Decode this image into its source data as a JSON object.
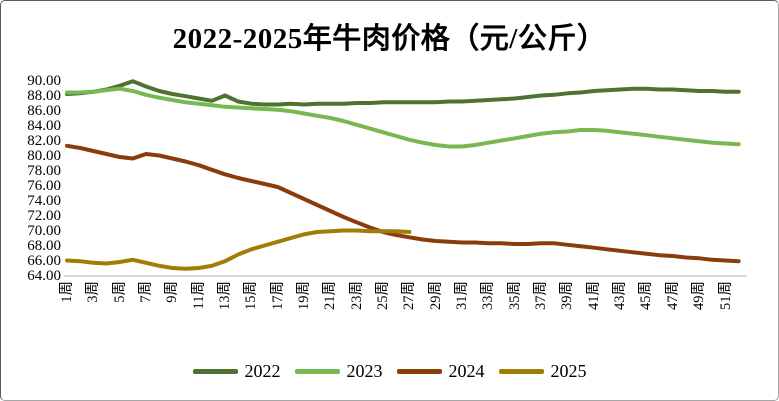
{
  "title": "2022-2025年牛肉价格（元/公斤）",
  "chart_data": {
    "type": "line",
    "title": "2022-2025年牛肉价格（元/公斤）",
    "xlabel": "",
    "ylabel": "",
    "x_unit": "周",
    "xlim": [
      1,
      52
    ],
    "ylim": [
      64,
      90
    ],
    "y_step": 2,
    "grid": false,
    "legend_position": "bottom",
    "axis_line_color": "#d9d9d9",
    "y_tick_labels": [
      "90.00",
      "88.00",
      "86.00",
      "84.00",
      "82.00",
      "80.00",
      "78.00",
      "76.00",
      "74.00",
      "72.00",
      "70.00",
      "68.00",
      "66.00",
      "64.00"
    ],
    "x_tick_labels": [
      "1周",
      "3周",
      "5周",
      "7周",
      "9周",
      "11周",
      "13周",
      "15周",
      "17周",
      "19周",
      "21周",
      "23周",
      "25周",
      "27周",
      "29周",
      "31周",
      "33周",
      "35周",
      "37周",
      "39周",
      "41周",
      "43周",
      "45周",
      "47周",
      "49周",
      "51周"
    ],
    "series": [
      {
        "name": "2022",
        "color": "#4e7231",
        "values": [
          88.2,
          88.3,
          88.5,
          88.8,
          89.3,
          89.9,
          89.2,
          88.6,
          88.2,
          87.9,
          87.6,
          87.3,
          88.0,
          87.2,
          86.9,
          86.8,
          86.8,
          86.9,
          86.8,
          86.9,
          86.9,
          86.9,
          87.0,
          87.0,
          87.1,
          87.1,
          87.1,
          87.1,
          87.1,
          87.2,
          87.2,
          87.3,
          87.4,
          87.5,
          87.6,
          87.8,
          88.0,
          88.1,
          88.3,
          88.4,
          88.6,
          88.7,
          88.8,
          88.9,
          88.9,
          88.8,
          88.8,
          88.7,
          88.6,
          88.6,
          88.5,
          88.5
        ]
      },
      {
        "name": "2023",
        "color": "#77b851",
        "values": [
          88.4,
          88.4,
          88.5,
          88.7,
          88.9,
          88.6,
          88.1,
          87.7,
          87.4,
          87.1,
          86.9,
          86.7,
          86.5,
          86.4,
          86.3,
          86.2,
          86.1,
          85.9,
          85.6,
          85.3,
          85.0,
          84.6,
          84.1,
          83.6,
          83.1,
          82.6,
          82.1,
          81.7,
          81.4,
          81.2,
          81.2,
          81.4,
          81.7,
          82.0,
          82.3,
          82.6,
          82.9,
          83.1,
          83.2,
          83.4,
          83.4,
          83.3,
          83.1,
          82.9,
          82.7,
          82.5,
          82.3,
          82.1,
          81.9,
          81.7,
          81.6,
          81.5
        ]
      },
      {
        "name": "2024",
        "color": "#8b3c0c",
        "values": [
          81.3,
          81.0,
          80.6,
          80.2,
          79.8,
          79.6,
          80.2,
          80.0,
          79.6,
          79.2,
          78.7,
          78.1,
          77.5,
          77.0,
          76.6,
          76.2,
          75.8,
          75.0,
          74.2,
          73.4,
          72.6,
          71.8,
          71.1,
          70.4,
          69.8,
          69.4,
          69.1,
          68.8,
          68.6,
          68.5,
          68.4,
          68.4,
          68.3,
          68.3,
          68.2,
          68.2,
          68.3,
          68.3,
          68.1,
          67.9,
          67.7,
          67.5,
          67.3,
          67.1,
          66.9,
          66.7,
          66.6,
          66.4,
          66.3,
          66.1,
          66.0,
          65.9
        ]
      },
      {
        "name": "2025",
        "color": "#a07d05",
        "values": [
          66.0,
          65.9,
          65.7,
          65.6,
          65.8,
          66.1,
          65.7,
          65.3,
          65.0,
          64.9,
          65.0,
          65.3,
          65.9,
          66.8,
          67.5,
          68.0,
          68.5,
          69.0,
          69.5,
          69.8,
          69.9,
          70.0,
          70.0,
          69.9,
          69.9,
          69.9,
          69.8
        ]
      }
    ]
  }
}
